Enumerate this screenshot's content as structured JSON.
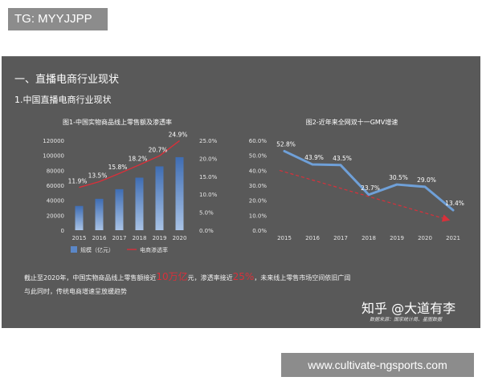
{
  "header_tag": "TG: MYYJJPP",
  "slide": {
    "title": "一、直播电商行业现状",
    "subtitle": "1.中国直播电商行业现状",
    "footnote_line1_a": "截止至2020年，中国实物商品线上零售额接近",
    "footnote_line1_hl1": "10万亿",
    "footnote_line1_b": "元，渗透率接近",
    "footnote_line1_hl2": "25%",
    "footnote_line1_c": "，未来线上零售市场空间依旧广阔",
    "footnote_line2": "与此同时，传统电商增速呈放缓趋势",
    "brand": "知乎 @大道有李",
    "source": "数据来源：国家统计局、星图数据"
  },
  "url_tag": "www.cultivate-ngsports.com",
  "colors": {
    "bar": "#5b87c7",
    "line_red": "#d9303a",
    "line_blue": "#6fa0d8",
    "slide_bg": "#595959"
  },
  "chart_data": [
    {
      "type": "bar",
      "title": "图1-中国实物商品线上零售额及渗透率",
      "categories": [
        "2015",
        "2016",
        "2017",
        "2018",
        "2019",
        "2020"
      ],
      "y_ticks": [
        "0",
        "20000",
        "40000",
        "60000",
        "80000",
        "100000",
        "120000"
      ],
      "y2_ticks": [
        "0.0%",
        "5.0%",
        "10.0%",
        "15.0%",
        "20.0%",
        "25.0%"
      ],
      "ylim": [
        0,
        120000
      ],
      "y2lim": [
        0,
        25
      ],
      "series": [
        {
          "name": "规模（亿元）",
          "type": "bar",
          "axis": "left",
          "values": [
            32424,
            41944,
            54806,
            70198,
            85239,
            97590
          ]
        },
        {
          "name": "电商渗透率",
          "type": "line",
          "axis": "right",
          "values": [
            11.9,
            13.5,
            15.8,
            18.2,
            20.7,
            24.9
          ],
          "labels": [
            "11.9%",
            "13.5%",
            "15.8%",
            "18.2%",
            "20.7%",
            "24.9%"
          ]
        }
      ],
      "legend": "bottom"
    },
    {
      "type": "line",
      "title": "图2-近年来全网双十一GMV增速",
      "categories": [
        "2015",
        "2016",
        "2017",
        "2018",
        "2019",
        "2020",
        "2021"
      ],
      "y_ticks": [
        "0.0%",
        "10.0%",
        "20.0%",
        "30.0%",
        "40.0%",
        "50.0%",
        "60.0%"
      ],
      "ylim": [
        0,
        60
      ],
      "series": [
        {
          "values": [
            52.8,
            43.9,
            43.5,
            23.7,
            30.5,
            29.0,
            13.4
          ],
          "labels": [
            "52.8%",
            "43.9%",
            "43.5%",
            "23.7%",
            "30.5%",
            "29.0%",
            "13.4%"
          ]
        }
      ],
      "trend": "downward dashed arrow"
    }
  ]
}
